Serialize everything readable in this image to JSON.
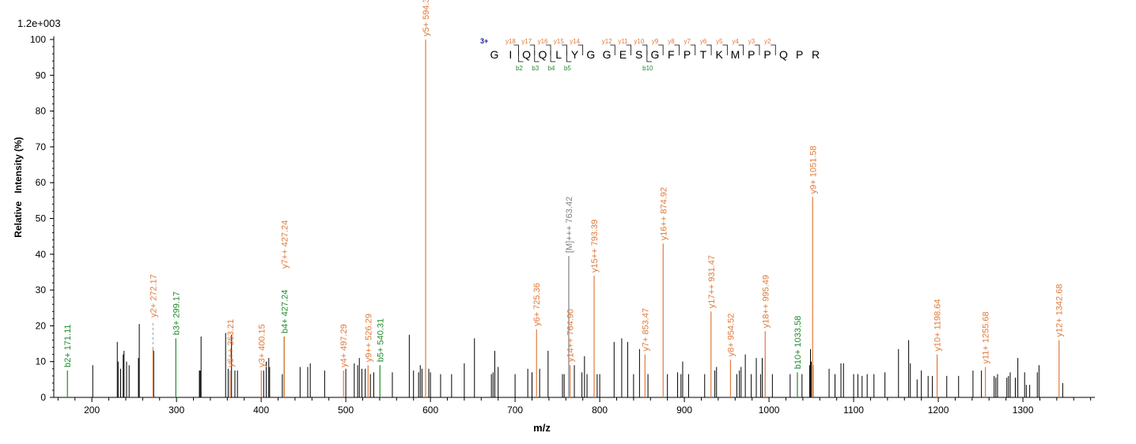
{
  "chart_data": {
    "type": "bar",
    "scale_label": "1.2e+003",
    "xlabel": "m/z",
    "ylabel": "Relative   Intensity (%)",
    "xlim": [
      155,
      1385
    ],
    "ylim": [
      0,
      100
    ],
    "x_ticks": [
      200,
      300,
      400,
      500,
      600,
      700,
      800,
      900,
      1000,
      1100,
      1200,
      1300
    ],
    "y_ticks": [
      0,
      10,
      20,
      30,
      40,
      50,
      60,
      70,
      80,
      90,
      100
    ],
    "colors": {
      "y_ion": "#e07a3a",
      "b_ion": "#1f8a2a",
      "precursor": "#808080",
      "unmatched": "#000000",
      "peptide": "#000000",
      "charge": "#1a1a9a"
    },
    "peptide": {
      "charge": "3+",
      "sequence": [
        "G",
        "I",
        "Q",
        "Q",
        "L",
        "Y",
        "G",
        "G",
        "E",
        "S",
        "G",
        "F",
        "P",
        "T",
        "K",
        "M",
        "P",
        "P",
        "Q",
        "P",
        "R"
      ],
      "y_marks": [
        {
          "after": 2,
          "label": "y18"
        },
        {
          "after": 3,
          "label": "y17"
        },
        {
          "after": 4,
          "label": "y16"
        },
        {
          "after": 5,
          "label": "y15"
        },
        {
          "after": 6,
          "label": "y14"
        },
        {
          "after": 8,
          "label": "y12"
        },
        {
          "after": 9,
          "label": "y11"
        },
        {
          "after": 10,
          "label": "y10"
        },
        {
          "after": 11,
          "label": "y9"
        },
        {
          "after": 12,
          "label": "y8"
        },
        {
          "after": 13,
          "label": "y7"
        },
        {
          "after": 14,
          "label": "y6"
        },
        {
          "after": 15,
          "label": "y5"
        },
        {
          "after": 16,
          "label": "y4"
        },
        {
          "after": 17,
          "label": "y3"
        },
        {
          "after": 18,
          "label": "y2"
        }
      ],
      "b_marks": [
        {
          "after": 2,
          "label": "b2"
        },
        {
          "after": 3,
          "label": "b3"
        },
        {
          "after": 4,
          "label": "b4"
        },
        {
          "after": 5,
          "label": "b5"
        },
        {
          "after": 10,
          "label": "b10"
        }
      ]
    },
    "annotated_peaks": [
      {
        "mz": 171.11,
        "intensity": 7.5,
        "label": "b2+ 171.11",
        "kind": "b"
      },
      {
        "mz": 272.17,
        "intensity": 13.5,
        "label": "y2+ 272.17",
        "kind": "y",
        "dashed": true
      },
      {
        "mz": 299.17,
        "intensity": 16.5,
        "label": "b3+ 299.17",
        "kind": "b"
      },
      {
        "mz": 363.21,
        "intensity": 7.5,
        "label": "y6++ 363.21",
        "kind": "y"
      },
      {
        "mz": 400.15,
        "intensity": 7.5,
        "label": "y3+ 400.15",
        "kind": "y"
      },
      {
        "mz": 427.24,
        "intensity": 17,
        "label": "b4+ 427.24",
        "kind": "b"
      },
      {
        "mz": 427.24,
        "intensity": 17,
        "label": "y7++ 427.24",
        "kind": "y",
        "label_y": 36
      },
      {
        "mz": 497.29,
        "intensity": 7.5,
        "label": "y4+ 497.29",
        "kind": "y"
      },
      {
        "mz": 526.29,
        "intensity": 9,
        "label": "y9++ 526.29",
        "kind": "y"
      },
      {
        "mz": 540.31,
        "intensity": 9,
        "label": "b5+ 540.31",
        "kind": "b"
      },
      {
        "mz": 594.34,
        "intensity": 100,
        "label": "y5+ 594.34",
        "kind": "y"
      },
      {
        "mz": 725.36,
        "intensity": 19,
        "label": "y6+ 725.36",
        "kind": "y"
      },
      {
        "mz": 763.42,
        "intensity": 39.5,
        "label": "[M]+++ 763.42",
        "kind": "m"
      },
      {
        "mz": 764.9,
        "intensity": 9,
        "label": "y14++ 764.90",
        "kind": "y"
      },
      {
        "mz": 793.39,
        "intensity": 34,
        "label": "y15++ 793.39",
        "kind": "y"
      },
      {
        "mz": 853.47,
        "intensity": 12,
        "label": "y7+ 853.47",
        "kind": "y"
      },
      {
        "mz": 874.92,
        "intensity": 43,
        "label": "y16++ 874.92",
        "kind": "y"
      },
      {
        "mz": 931.47,
        "intensity": 24,
        "label": "y17++ 931.47",
        "kind": "y"
      },
      {
        "mz": 954.52,
        "intensity": 10.5,
        "label": "y8+ 954.52",
        "kind": "y"
      },
      {
        "mz": 995.49,
        "intensity": 18.5,
        "label": "y18++ 995.49",
        "kind": "y"
      },
      {
        "mz": 1033.58,
        "intensity": 7,
        "label": "b10+ 1033.58",
        "kind": "b"
      },
      {
        "mz": 1051.58,
        "intensity": 56,
        "label": "y9+ 1051.58",
        "kind": "y"
      },
      {
        "mz": 1198.64,
        "intensity": 12,
        "label": "y10+ 1198.64",
        "kind": "y"
      },
      {
        "mz": 1255.68,
        "intensity": 8.5,
        "label": "y11+ 1255.68",
        "kind": "y"
      },
      {
        "mz": 1342.68,
        "intensity": 16,
        "label": "y12+ 1342.68",
        "kind": "y"
      }
    ],
    "unmatched_peaks": [
      [
        201,
        9
      ],
      [
        230,
        15.5
      ],
      [
        231,
        10
      ],
      [
        234,
        8
      ],
      [
        237,
        12
      ],
      [
        238,
        13
      ],
      [
        241,
        10
      ],
      [
        244,
        9
      ],
      [
        255,
        11
      ],
      [
        256,
        20.5
      ],
      [
        273,
        13
      ],
      [
        327,
        7.5
      ],
      [
        328,
        7.5
      ],
      [
        329,
        17
      ],
      [
        358,
        18
      ],
      [
        361,
        8
      ],
      [
        365,
        17.5
      ],
      [
        369,
        7.5
      ],
      [
        372,
        7.5
      ],
      [
        403,
        7.5
      ],
      [
        406,
        10
      ],
      [
        409,
        11
      ],
      [
        410,
        8.5
      ],
      [
        425,
        6.5
      ],
      [
        446,
        8.5
      ],
      [
        455,
        8.5
      ],
      [
        458,
        9.5
      ],
      [
        475,
        7.5
      ],
      [
        500,
        8
      ],
      [
        510,
        9.5
      ],
      [
        514,
        9
      ],
      [
        516,
        11
      ],
      [
        519,
        8
      ],
      [
        523,
        8
      ],
      [
        529,
        6.5
      ],
      [
        533,
        7
      ],
      [
        555,
        7
      ],
      [
        575,
        17.5
      ],
      [
        580,
        7.5
      ],
      [
        586,
        7
      ],
      [
        588,
        9
      ],
      [
        590,
        8
      ],
      [
        598,
        8
      ],
      [
        600,
        7
      ],
      [
        612,
        6.5
      ],
      [
        625,
        6.5
      ],
      [
        640,
        9.5
      ],
      [
        652,
        16.5
      ],
      [
        672,
        6.5
      ],
      [
        674,
        7
      ],
      [
        676,
        13
      ],
      [
        680,
        8.5
      ],
      [
        700,
        6.5
      ],
      [
        715,
        8
      ],
      [
        720,
        7
      ],
      [
        729,
        8
      ],
      [
        739,
        13
      ],
      [
        756,
        6.5
      ],
      [
        758,
        6.5
      ],
      [
        770,
        9
      ],
      [
        779,
        7
      ],
      [
        782,
        11.5
      ],
      [
        785,
        6.5
      ],
      [
        797,
        6.5
      ],
      [
        800,
        6.5
      ],
      [
        817,
        15.5
      ],
      [
        826,
        16.5
      ],
      [
        833,
        15.5
      ],
      [
        840,
        6.5
      ],
      [
        847,
        13.5
      ],
      [
        857,
        6.5
      ],
      [
        880,
        6.5
      ],
      [
        892,
        7
      ],
      [
        896,
        6.5
      ],
      [
        898,
        10
      ],
      [
        905,
        6.5
      ],
      [
        924,
        6.5
      ],
      [
        936,
        7.5
      ],
      [
        938,
        8.5
      ],
      [
        962,
        6.5
      ],
      [
        965,
        7.5
      ],
      [
        967,
        8.5
      ],
      [
        972,
        12
      ],
      [
        979,
        6.5
      ],
      [
        985,
        11
      ],
      [
        990,
        6.5
      ],
      [
        992,
        11
      ],
      [
        1004,
        6.5
      ],
      [
        1025,
        6.5
      ],
      [
        1039,
        6.5
      ],
      [
        1048,
        9
      ],
      [
        1049,
        13.5
      ],
      [
        1050,
        10
      ],
      [
        1052,
        9
      ],
      [
        1071,
        8
      ],
      [
        1078,
        6.5
      ],
      [
        1085,
        9.5
      ],
      [
        1088,
        9.5
      ],
      [
        1100,
        6.5
      ],
      [
        1105,
        6.5
      ],
      [
        1110,
        6
      ],
      [
        1116,
        6.5
      ],
      [
        1124,
        6.5
      ],
      [
        1137,
        7
      ],
      [
        1153,
        13.5
      ],
      [
        1165,
        16
      ],
      [
        1167,
        9.5
      ],
      [
        1175,
        5
      ],
      [
        1180,
        7.5
      ],
      [
        1188,
        6
      ],
      [
        1193,
        6
      ],
      [
        1210,
        6
      ],
      [
        1224,
        6
      ],
      [
        1241,
        7.5
      ],
      [
        1251,
        7.5
      ],
      [
        1266,
        6
      ],
      [
        1268,
        5.5
      ],
      [
        1270,
        6.5
      ],
      [
        1281,
        5.5
      ],
      [
        1283,
        6
      ],
      [
        1285,
        7
      ],
      [
        1291,
        5.5
      ],
      [
        1294,
        11
      ],
      [
        1302,
        7
      ],
      [
        1304,
        3.5
      ],
      [
        1308,
        3.5
      ],
      [
        1317,
        7
      ],
      [
        1319,
        9
      ],
      [
        1347,
        4
      ]
    ]
  }
}
